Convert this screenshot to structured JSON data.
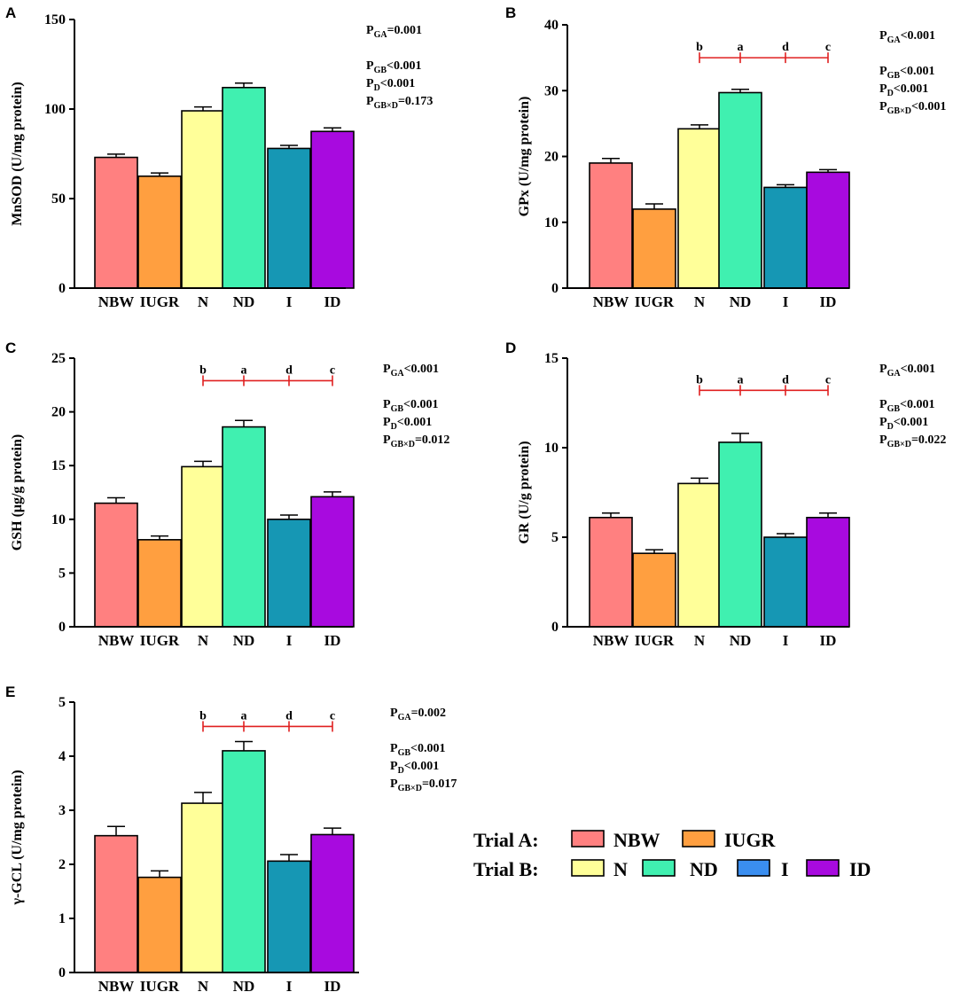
{
  "colors": {
    "NBW": "#ff8080",
    "IUGR": "#ff9f40",
    "N": "#ffff99",
    "ND": "#40f0b0",
    "I": "#1697b4",
    "I_legend": "#3a8ef0",
    "ID": "#a80adf",
    "sig": "#e02020"
  },
  "legend": {
    "trial_a": "Trial A:",
    "trial_b": "Trial B:",
    "items_a": [
      {
        "key": "NBW",
        "label": "NBW"
      },
      {
        "key": "IUGR",
        "label": "IUGR"
      }
    ],
    "items_b": [
      {
        "key": "N",
        "label": "N"
      },
      {
        "key": "ND",
        "label": "ND"
      },
      {
        "key": "I_legend",
        "label": "I"
      },
      {
        "key": "ID",
        "label": "ID"
      }
    ]
  },
  "chart_data": [
    {
      "panel": "A",
      "type": "bar",
      "categories": [
        "NBW",
        "IUGR",
        "N",
        "ND",
        "I",
        "ID"
      ],
      "values": [
        73,
        62.5,
        99,
        112,
        78,
        87.5
      ],
      "errors": [
        1.8,
        1.8,
        2.2,
        2.5,
        1.7,
        2.0
      ],
      "ylabel": "MnSOD (U/mg protein)",
      "ylim": [
        0,
        150
      ],
      "yticks": [
        0,
        50,
        100,
        150
      ],
      "sig_letters": [],
      "stats": [
        {
          "main": "P",
          "sub": "GA",
          "tail": "=0.001"
        },
        {
          "main": "P",
          "sub": "GB",
          "tail": "<0.001"
        },
        {
          "main": "P",
          "sub": "D",
          "tail": "<0.001"
        },
        {
          "main": "P",
          "sub": "GB×D",
          "tail": "=0.173"
        }
      ]
    },
    {
      "panel": "B",
      "type": "bar",
      "categories": [
        "NBW",
        "IUGR",
        "N",
        "ND",
        "I",
        "ID"
      ],
      "values": [
        19,
        12,
        24.2,
        29.7,
        15.3,
        17.6
      ],
      "errors": [
        0.7,
        0.8,
        0.6,
        0.5,
        0.4,
        0.4
      ],
      "ylabel": "GPx (U/mg protein)",
      "ylim": [
        0,
        40
      ],
      "yticks": [
        0,
        10,
        20,
        30,
        40
      ],
      "sig_letters": [
        "b",
        "a",
        "d",
        "c"
      ],
      "sig_level": 35,
      "stats": [
        {
          "main": "P",
          "sub": "GA",
          "tail": "<0.001"
        },
        {
          "main": "P",
          "sub": "GB",
          "tail": "<0.001"
        },
        {
          "main": "P",
          "sub": "D",
          "tail": "<0.001"
        },
        {
          "main": "P",
          "sub": "GB×D",
          "tail": "<0.001"
        }
      ]
    },
    {
      "panel": "C",
      "type": "bar",
      "categories": [
        "NBW",
        "IUGR",
        "N",
        "ND",
        "I",
        "ID"
      ],
      "values": [
        11.5,
        8.1,
        14.9,
        18.6,
        10.0,
        12.1
      ],
      "errors": [
        0.5,
        0.35,
        0.5,
        0.6,
        0.4,
        0.45
      ],
      "ylabel": "GSH (μg/g protein)",
      "ylim": [
        0,
        25
      ],
      "yticks": [
        0,
        5,
        10,
        15,
        20,
        25
      ],
      "sig_letters": [
        "b",
        "a",
        "d",
        "c"
      ],
      "sig_level": 22.9,
      "stats": [
        {
          "main": "P",
          "sub": "GA",
          "tail": "<0.001"
        },
        {
          "main": "P",
          "sub": "GB",
          "tail": "<0.001"
        },
        {
          "main": "P",
          "sub": "D",
          "tail": "<0.001"
        },
        {
          "main": "P",
          "sub": "GB×D",
          "tail": "=0.012"
        }
      ]
    },
    {
      "panel": "D",
      "type": "bar",
      "categories": [
        "NBW",
        "IUGR",
        "N",
        "ND",
        "I",
        "ID"
      ],
      "values": [
        6.1,
        4.1,
        8.0,
        10.3,
        5.0,
        6.1
      ],
      "errors": [
        0.25,
        0.2,
        0.3,
        0.5,
        0.2,
        0.25
      ],
      "ylabel": "GR (U/g protein)",
      "ylim": [
        0,
        15
      ],
      "yticks": [
        0,
        5,
        10,
        15
      ],
      "sig_letters": [
        "b",
        "a",
        "d",
        "c"
      ],
      "sig_level": 13.2,
      "stats": [
        {
          "main": "P",
          "sub": "GA",
          "tail": "<0.001"
        },
        {
          "main": "P",
          "sub": "GB",
          "tail": "<0.001"
        },
        {
          "main": "P",
          "sub": "D",
          "tail": "<0.001"
        },
        {
          "main": "P",
          "sub": "GB×D",
          "tail": "=0.022"
        }
      ]
    },
    {
      "panel": "E",
      "type": "bar",
      "categories": [
        "NBW",
        "IUGR",
        "N",
        "ND",
        "I",
        "ID"
      ],
      "values": [
        2.53,
        1.76,
        3.13,
        4.1,
        2.06,
        2.55
      ],
      "errors": [
        0.17,
        0.12,
        0.2,
        0.17,
        0.12,
        0.12
      ],
      "ylabel": "γ-GCL (U/mg protein)",
      "ylim": [
        0,
        5
      ],
      "yticks": [
        0,
        1,
        2,
        3,
        4,
        5
      ],
      "sig_letters": [
        "b",
        "a",
        "d",
        "c"
      ],
      "sig_level": 4.55,
      "stats": [
        {
          "main": "P",
          "sub": "GA",
          "tail": "=0.002"
        },
        {
          "main": "P",
          "sub": "GB",
          "tail": "<0.001"
        },
        {
          "main": "P",
          "sub": "D",
          "tail": "<0.001"
        },
        {
          "main": "P",
          "sub": "GB×D",
          "tail": "=0.017"
        }
      ]
    }
  ]
}
